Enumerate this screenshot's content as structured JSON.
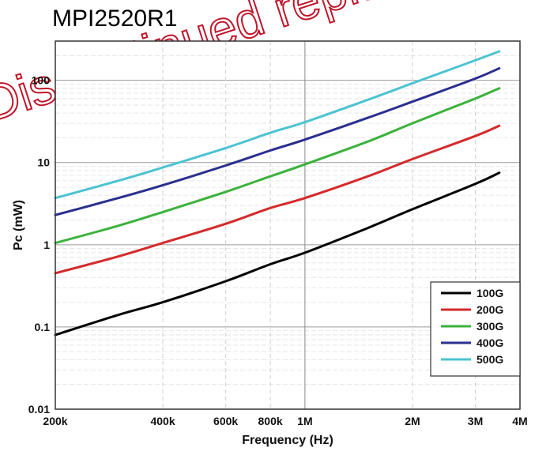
{
  "title": "MPI2520R1",
  "watermark": "Discontinued replaced",
  "chart_data": {
    "type": "line",
    "xlabel": "Frequency (Hz)",
    "ylabel": "Pc (mW)",
    "x_scale": "log",
    "y_scale": "log",
    "xlim": [
      200000,
      4000000
    ],
    "ylim": [
      0.01,
      300
    ],
    "x_ticks": [
      {
        "value": 200000,
        "label": "200k"
      },
      {
        "value": 400000,
        "label": "400k"
      },
      {
        "value": 600000,
        "label": "600k"
      },
      {
        "value": 800000,
        "label": "800k"
      },
      {
        "value": 1000000,
        "label": "1M"
      },
      {
        "value": 2000000,
        "label": "2M"
      },
      {
        "value": 3000000,
        "label": "3M"
      },
      {
        "value": 4000000,
        "label": "4M"
      }
    ],
    "y_ticks": [
      {
        "value": 0.01,
        "label": "0.01"
      },
      {
        "value": 0.1,
        "label": "0.1"
      },
      {
        "value": 1,
        "label": "1"
      },
      {
        "value": 10,
        "label": "10"
      },
      {
        "value": 100,
        "label": "100"
      }
    ],
    "grid": true,
    "legend_position": "bottom-right",
    "x": [
      200000,
      300000,
      400000,
      600000,
      800000,
      1000000,
      1500000,
      2000000,
      3000000,
      3500000
    ],
    "series": [
      {
        "name": "100G",
        "color": "#000000",
        "values": [
          0.08,
          0.14,
          0.2,
          0.36,
          0.58,
          0.8,
          1.6,
          2.7,
          5.5,
          7.5
        ]
      },
      {
        "name": "200G",
        "color": "#d42a2a",
        "values": [
          0.45,
          0.72,
          1.05,
          1.8,
          2.8,
          3.7,
          6.8,
          11,
          21,
          28
        ]
      },
      {
        "name": "300G",
        "color": "#3cb23c",
        "values": [
          1.05,
          1.7,
          2.5,
          4.4,
          6.8,
          9.5,
          18,
          30,
          60,
          80
        ]
      },
      {
        "name": "400G",
        "color": "#2a2f8f",
        "values": [
          2.3,
          3.7,
          5.3,
          9.2,
          14,
          19,
          35,
          55,
          105,
          140
        ]
      },
      {
        "name": "500G",
        "color": "#4cc3d1",
        "values": [
          3.7,
          6.0,
          8.7,
          15,
          23,
          31,
          58,
          92,
          175,
          225
        ]
      }
    ]
  }
}
